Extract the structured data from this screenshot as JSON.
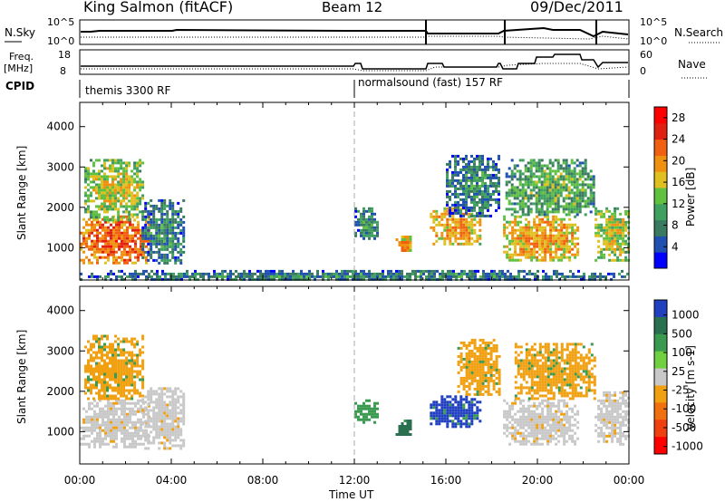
{
  "header": {
    "station": "King Salmon (fitACF)",
    "beam": "Beam 12",
    "date": "09/Dec/2011"
  },
  "top_panels": {
    "nsky_label": "N.Sky",
    "nsearch_label": "N.Search",
    "freq_label": "Freq.",
    "freq_unit": "[MHz]",
    "nave_label": "Nave",
    "cpid_label": "CPID",
    "noise_ticks": [
      "10^5",
      "10^0"
    ],
    "freq_ticks": [
      "18",
      "8"
    ],
    "nave_ticks": [
      "60",
      "0"
    ],
    "cpid_segments": [
      {
        "start_h": 0,
        "end_h": 12,
        "label": "themis 3300 RF"
      },
      {
        "start_h": 12,
        "end_h": 24,
        "label": "normalsound (fast) 157 RF"
      }
    ]
  },
  "colors": {
    "power_scale": [
      "#0000ff",
      "#2050b0",
      "#3a7a60",
      "#40a060",
      "#60c040",
      "#e0c020",
      "#f09010",
      "#f06010",
      "#e02010",
      "#ff0000"
    ],
    "velocity_scale": [
      "#2040c0",
      "#2a7050",
      "#3a9a50",
      "#70d040",
      "#c8c8c8",
      "#f0a010",
      "#f07010",
      "#f04010",
      "#ff0000"
    ],
    "ground_scatter": "#c8c8c8"
  },
  "chart_data": [
    {
      "type": "heatmap",
      "panel": "power",
      "xlabel": "Time UT",
      "ylabel": "Slant Range [km]",
      "xlim": [
        0,
        24
      ],
      "ylim": [
        200,
        4600
      ],
      "x_ticks": [
        "00:00",
        "04:00",
        "08:00",
        "12:00",
        "16:00",
        "20:00",
        "00:00"
      ],
      "y_ticks": [
        "1000",
        "2000",
        "3000",
        "4000"
      ],
      "colorbar": {
        "label": "Power [dB]",
        "ticks": [
          "4",
          "8",
          "12",
          "16",
          "20",
          "24",
          "28"
        ],
        "range": [
          0,
          30
        ]
      },
      "regions": [
        {
          "t0": 0.0,
          "t1": 3.0,
          "r0": 650,
          "r1": 1800,
          "level": 24
        },
        {
          "t0": 0.2,
          "t1": 2.8,
          "r0": 1700,
          "r1": 3200,
          "level": 16
        },
        {
          "t0": 2.7,
          "t1": 4.6,
          "r0": 600,
          "r1": 2200,
          "level": 8
        },
        {
          "t0": 12.0,
          "t1": 13.0,
          "r0": 1200,
          "r1": 2000,
          "level": 8
        },
        {
          "t0": 13.8,
          "t1": 14.5,
          "r0": 900,
          "r1": 1300,
          "level": 20
        },
        {
          "t0": 15.3,
          "t1": 17.5,
          "r0": 1100,
          "r1": 2000,
          "level": 20
        },
        {
          "t0": 16.0,
          "t1": 18.3,
          "r0": 1800,
          "r1": 3300,
          "level": 8
        },
        {
          "t0": 18.5,
          "t1": 21.8,
          "r0": 700,
          "r1": 1800,
          "level": 20
        },
        {
          "t0": 18.6,
          "t1": 22.5,
          "r0": 1800,
          "r1": 3200,
          "level": 12
        },
        {
          "t0": 22.5,
          "t1": 24.0,
          "r0": 700,
          "r1": 2000,
          "level": 16
        },
        {
          "t0": 0.0,
          "t1": 24.0,
          "r0": 200,
          "r1": 450,
          "level": 8
        }
      ]
    },
    {
      "type": "heatmap",
      "panel": "velocity",
      "xlabel": "Time UT",
      "ylabel": "Slant Range [km]",
      "xlim": [
        0,
        24
      ],
      "ylim": [
        200,
        4600
      ],
      "x_ticks": [
        "00:00",
        "04:00",
        "08:00",
        "12:00",
        "16:00",
        "20:00",
        "00:00"
      ],
      "y_ticks": [
        "1000",
        "2000",
        "3000",
        "4000"
      ],
      "colorbar": {
        "label": "Velocity [m s-1]",
        "ticks": [
          "1000",
          "500",
          "100",
          "25",
          "-25",
          "-100",
          "-500",
          "-1000"
        ]
      },
      "regions": [
        {
          "t0": 0.0,
          "t1": 3.0,
          "r0": 650,
          "r1": 1800,
          "level": "ground"
        },
        {
          "t0": 0.2,
          "t1": 2.8,
          "r0": 1800,
          "r1": 3400,
          "level": -100
        },
        {
          "t0": 2.7,
          "t1": 4.6,
          "r0": 600,
          "r1": 2100,
          "level": "ground"
        },
        {
          "t0": 12.0,
          "t1": 13.0,
          "r0": 1200,
          "r1": 1800,
          "level": 100
        },
        {
          "t0": 13.8,
          "t1": 14.5,
          "r0": 900,
          "r1": 1300,
          "level": 500
        },
        {
          "t0": 15.3,
          "t1": 17.5,
          "r0": 1100,
          "r1": 1900,
          "level": 1000
        },
        {
          "t0": 16.5,
          "t1": 18.3,
          "r0": 1900,
          "r1": 3300,
          "level": -100
        },
        {
          "t0": 18.5,
          "t1": 21.8,
          "r0": 700,
          "r1": 1800,
          "level": "ground"
        },
        {
          "t0": 19.0,
          "t1": 22.5,
          "r0": 1800,
          "r1": 3200,
          "level": -100
        },
        {
          "t0": 22.5,
          "t1": 24.0,
          "r0": 700,
          "r1": 2000,
          "level": "ground"
        }
      ]
    }
  ]
}
